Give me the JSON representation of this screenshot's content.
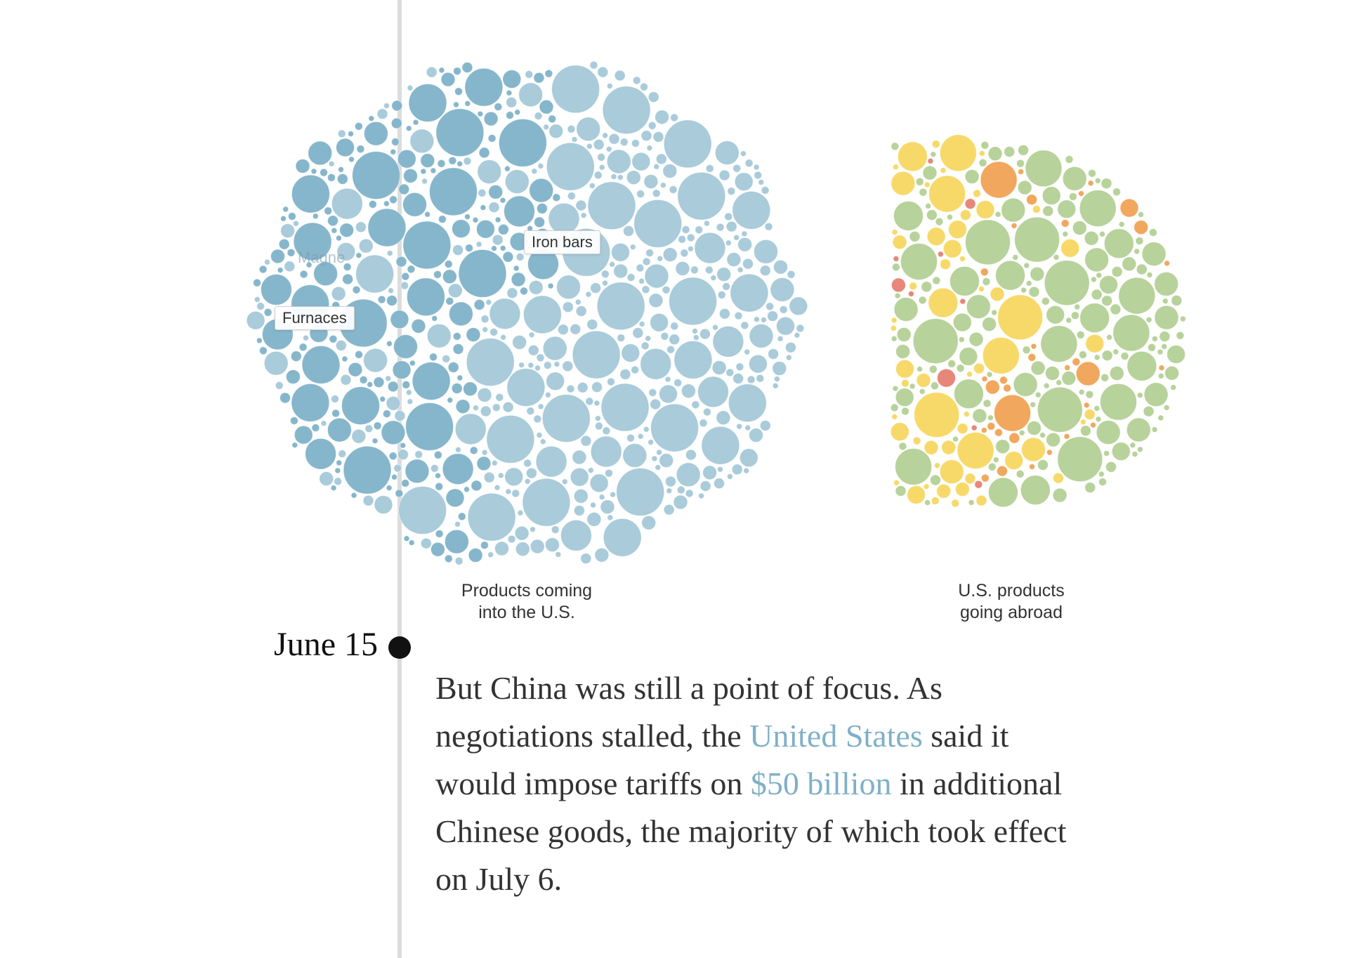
{
  "colors": {
    "imports_dark": "#86b6cb",
    "imports_light": "#a9cbda",
    "exports_green": "#b7d29a",
    "exports_yellow": "#f7d96a",
    "exports_orange": "#f1a75d",
    "exports_red": "#e6877a",
    "highlight_text": "#7fb0c8",
    "timeline": "#dcdcdc"
  },
  "graphic": {
    "imports_caption": [
      "Products coming",
      "into the U.S."
    ],
    "exports_caption": [
      "U.S. products",
      "going abroad"
    ],
    "labels": {
      "iron_bars": "Iron bars",
      "furnaces": "Furnaces",
      "ghost": "Magne"
    }
  },
  "timeline": {
    "date": "June 15"
  },
  "story": {
    "p1": "But China was still a point of focus. As negotiations stalled, the ",
    "link_us": "United States",
    "p2": " said it would impose tariffs on ",
    "link_amount": "$50 billion",
    "p3": " in additional Chinese goods, the majority of which took effect on July 6."
  }
}
